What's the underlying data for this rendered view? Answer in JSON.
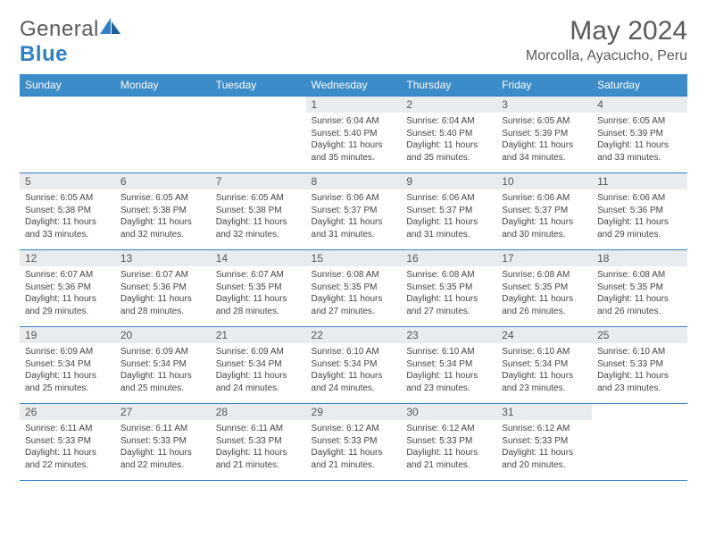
{
  "logo": {
    "word1": "General",
    "word2": "Blue"
  },
  "title": "May 2024",
  "location": "Morcolla, Ayacucho, Peru",
  "weekdays": [
    "Sunday",
    "Monday",
    "Tuesday",
    "Wednesday",
    "Thursday",
    "Friday",
    "Saturday"
  ],
  "colors": {
    "header_bg": "#3b8cc9",
    "rule": "#2f7fc4",
    "daynum_bg": "#e9ecef",
    "text": "#4a4a4a"
  },
  "typography": {
    "title_fontsize": 30,
    "location_fontsize": 16,
    "weekday_fontsize": 12,
    "daynum_fontsize": 12,
    "body_fontsize": 10
  },
  "weeks": [
    [
      null,
      null,
      null,
      {
        "n": "1",
        "sr": "6:04 AM",
        "ss": "5:40 PM",
        "dl": "11 hours and 35 minutes."
      },
      {
        "n": "2",
        "sr": "6:04 AM",
        "ss": "5:40 PM",
        "dl": "11 hours and 35 minutes."
      },
      {
        "n": "3",
        "sr": "6:05 AM",
        "ss": "5:39 PM",
        "dl": "11 hours and 34 minutes."
      },
      {
        "n": "4",
        "sr": "6:05 AM",
        "ss": "5:39 PM",
        "dl": "11 hours and 33 minutes."
      }
    ],
    [
      {
        "n": "5",
        "sr": "6:05 AM",
        "ss": "5:38 PM",
        "dl": "11 hours and 33 minutes."
      },
      {
        "n": "6",
        "sr": "6:05 AM",
        "ss": "5:38 PM",
        "dl": "11 hours and 32 minutes."
      },
      {
        "n": "7",
        "sr": "6:05 AM",
        "ss": "5:38 PM",
        "dl": "11 hours and 32 minutes."
      },
      {
        "n": "8",
        "sr": "6:06 AM",
        "ss": "5:37 PM",
        "dl": "11 hours and 31 minutes."
      },
      {
        "n": "9",
        "sr": "6:06 AM",
        "ss": "5:37 PM",
        "dl": "11 hours and 31 minutes."
      },
      {
        "n": "10",
        "sr": "6:06 AM",
        "ss": "5:37 PM",
        "dl": "11 hours and 30 minutes."
      },
      {
        "n": "11",
        "sr": "6:06 AM",
        "ss": "5:36 PM",
        "dl": "11 hours and 29 minutes."
      }
    ],
    [
      {
        "n": "12",
        "sr": "6:07 AM",
        "ss": "5:36 PM",
        "dl": "11 hours and 29 minutes."
      },
      {
        "n": "13",
        "sr": "6:07 AM",
        "ss": "5:36 PM",
        "dl": "11 hours and 28 minutes."
      },
      {
        "n": "14",
        "sr": "6:07 AM",
        "ss": "5:35 PM",
        "dl": "11 hours and 28 minutes."
      },
      {
        "n": "15",
        "sr": "6:08 AM",
        "ss": "5:35 PM",
        "dl": "11 hours and 27 minutes."
      },
      {
        "n": "16",
        "sr": "6:08 AM",
        "ss": "5:35 PM",
        "dl": "11 hours and 27 minutes."
      },
      {
        "n": "17",
        "sr": "6:08 AM",
        "ss": "5:35 PM",
        "dl": "11 hours and 26 minutes."
      },
      {
        "n": "18",
        "sr": "6:08 AM",
        "ss": "5:35 PM",
        "dl": "11 hours and 26 minutes."
      }
    ],
    [
      {
        "n": "19",
        "sr": "6:09 AM",
        "ss": "5:34 PM",
        "dl": "11 hours and 25 minutes."
      },
      {
        "n": "20",
        "sr": "6:09 AM",
        "ss": "5:34 PM",
        "dl": "11 hours and 25 minutes."
      },
      {
        "n": "21",
        "sr": "6:09 AM",
        "ss": "5:34 PM",
        "dl": "11 hours and 24 minutes."
      },
      {
        "n": "22",
        "sr": "6:10 AM",
        "ss": "5:34 PM",
        "dl": "11 hours and 24 minutes."
      },
      {
        "n": "23",
        "sr": "6:10 AM",
        "ss": "5:34 PM",
        "dl": "11 hours and 23 minutes."
      },
      {
        "n": "24",
        "sr": "6:10 AM",
        "ss": "5:34 PM",
        "dl": "11 hours and 23 minutes."
      },
      {
        "n": "25",
        "sr": "6:10 AM",
        "ss": "5:33 PM",
        "dl": "11 hours and 23 minutes."
      }
    ],
    [
      {
        "n": "26",
        "sr": "6:11 AM",
        "ss": "5:33 PM",
        "dl": "11 hours and 22 minutes."
      },
      {
        "n": "27",
        "sr": "6:11 AM",
        "ss": "5:33 PM",
        "dl": "11 hours and 22 minutes."
      },
      {
        "n": "28",
        "sr": "6:11 AM",
        "ss": "5:33 PM",
        "dl": "11 hours and 21 minutes."
      },
      {
        "n": "29",
        "sr": "6:12 AM",
        "ss": "5:33 PM",
        "dl": "11 hours and 21 minutes."
      },
      {
        "n": "30",
        "sr": "6:12 AM",
        "ss": "5:33 PM",
        "dl": "11 hours and 21 minutes."
      },
      {
        "n": "31",
        "sr": "6:12 AM",
        "ss": "5:33 PM",
        "dl": "11 hours and 20 minutes."
      },
      null
    ]
  ],
  "labels": {
    "sunrise": "Sunrise:",
    "sunset": "Sunset:",
    "daylight": "Daylight:"
  }
}
